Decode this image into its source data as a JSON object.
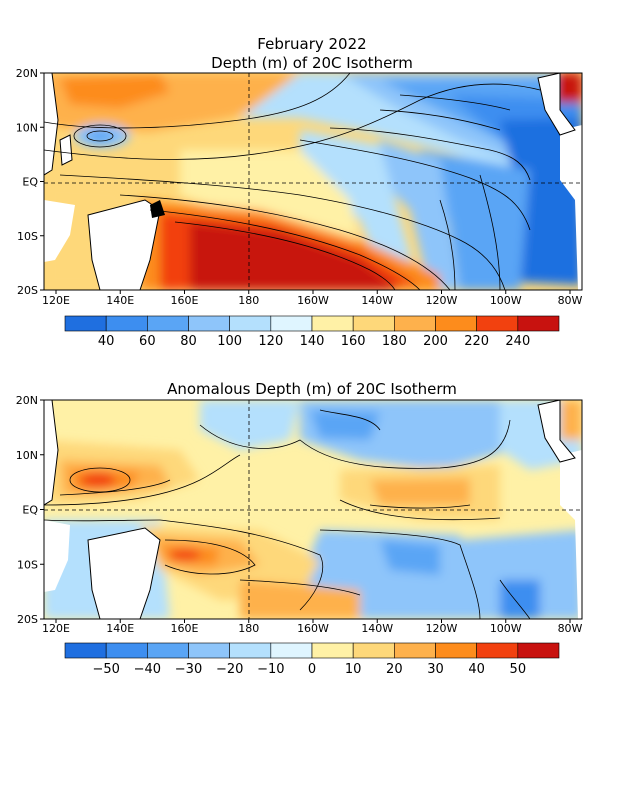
{
  "chart_data": [
    {
      "type": "heatmap",
      "title": "February 2022",
      "subtitle": "Depth (m) of 20C Isotherm",
      "x_ticks": [
        "120E",
        "140E",
        "160E",
        "180",
        "160W",
        "140W",
        "120W",
        "100W",
        "80W"
      ],
      "y_ticks": [
        "20N",
        "10N",
        "EQ",
        "10S",
        "20S"
      ],
      "x_range": [
        120,
        280
      ],
      "y_range": [
        -20,
        20
      ],
      "colorbar": {
        "labels": [
          "40",
          "60",
          "80",
          "100",
          "120",
          "140",
          "160",
          "180",
          "200",
          "220",
          "240"
        ],
        "values": [
          40,
          60,
          80,
          100,
          120,
          140,
          160,
          180,
          200,
          220,
          240
        ],
        "colors": [
          "#1f6fe0",
          "#3d8ef0",
          "#5aa5f5",
          "#8ec5fa",
          "#b4e0fd",
          "#dff5ff",
          "#fff1a6",
          "#fed87a",
          "#feb14c",
          "#fd8c1c",
          "#f2410f",
          "#c8120f"
        ]
      },
      "grid": "dashed at 180 and EQ"
    },
    {
      "type": "heatmap",
      "title": "Anomalous Depth (m) of 20C Isotherm",
      "x_ticks": [
        "120E",
        "140E",
        "160E",
        "180",
        "160W",
        "140W",
        "120W",
        "100W",
        "80W"
      ],
      "y_ticks": [
        "20N",
        "10N",
        "EQ",
        "10S",
        "20S"
      ],
      "x_range": [
        120,
        280
      ],
      "y_range": [
        -20,
        20
      ],
      "colorbar": {
        "labels": [
          "−50",
          "−40",
          "−30",
          "−20",
          "−10",
          "0",
          "10",
          "20",
          "30",
          "40",
          "50"
        ],
        "values": [
          -50,
          -40,
          -30,
          -20,
          -10,
          0,
          10,
          20,
          30,
          40,
          50
        ],
        "colors": [
          "#1f6fe0",
          "#3d8ef0",
          "#5aa5f5",
          "#8ec5fa",
          "#b4e0fd",
          "#dff5ff",
          "#fff1a6",
          "#fed87a",
          "#feb14c",
          "#fd8c1c",
          "#f2410f",
          "#c8120f"
        ]
      },
      "grid": "dashed at 180 and EQ"
    }
  ]
}
